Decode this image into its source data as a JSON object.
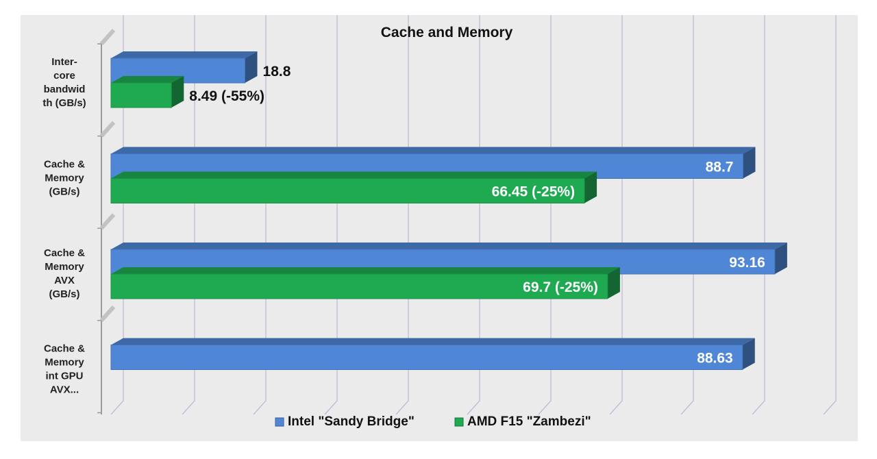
{
  "chart_data": {
    "type": "bar",
    "orientation": "horizontal",
    "title": "Cache and Memory",
    "categories": [
      [
        "Inter-",
        "core",
        "bandwid",
        "th (GB/s)"
      ],
      [
        "Cache &",
        "Memory",
        "(GB/s)"
      ],
      [
        "Cache &",
        "Memory",
        "AVX",
        "(GB/s)"
      ],
      [
        "Cache &",
        "Memory",
        "int GPU",
        "AVX..."
      ]
    ],
    "series": [
      {
        "name": "Intel \"Sandy Bridge\"",
        "values": [
          18.8,
          88.7,
          93.16,
          88.63
        ],
        "labels": [
          "18.8",
          "88.7",
          "93.16",
          "88.63"
        ]
      },
      {
        "name": "AMD F15 \"Zambezi\"",
        "values": [
          8.49,
          66.45,
          69.7,
          null
        ],
        "labels": [
          "8.49 (-55%)",
          "66.45 (-25%)",
          "69.7 (-25%)",
          ""
        ]
      }
    ],
    "xlim": [
      0,
      100
    ],
    "grid": true,
    "legend_position": "bottom",
    "colors": [
      "#4f87d6",
      "#1faa52"
    ]
  }
}
